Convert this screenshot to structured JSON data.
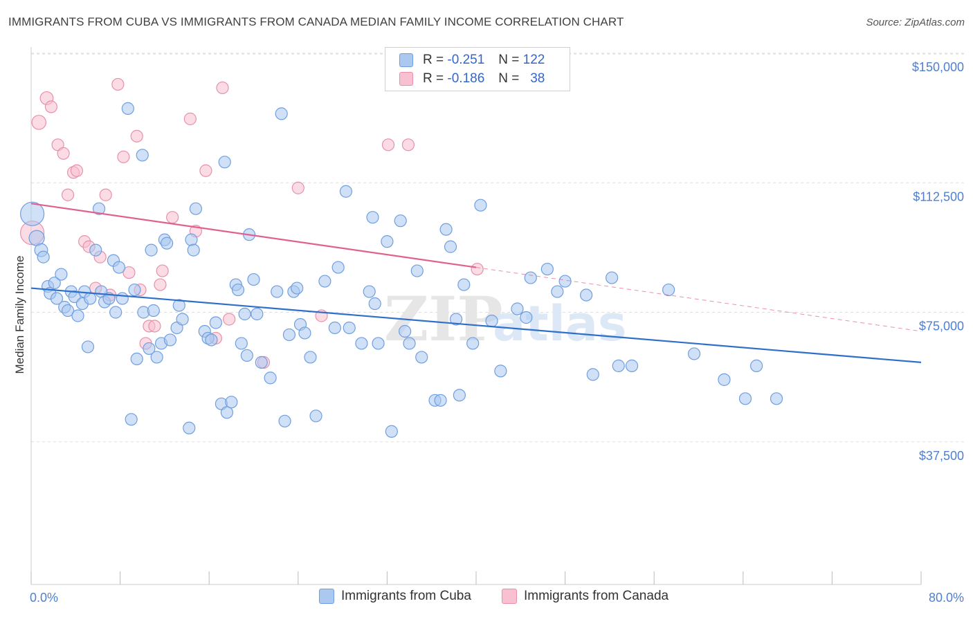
{
  "title": "IMMIGRANTS FROM CUBA VS IMMIGRANTS FROM CANADA MEDIAN FAMILY INCOME CORRELATION CHART",
  "source": "Source: ZipAtlas.com",
  "watermark": {
    "zip": "ZIP",
    "atlas": "atlas"
  },
  "legend": {
    "r_label": "R =",
    "n_label": "N =",
    "cuba": {
      "r": "-0.251",
      "n": "122"
    },
    "canada": {
      "r": "-0.186",
      "n": "38"
    }
  },
  "colors": {
    "cuba_fill": "#aac8f0",
    "cuba_stroke": "#6f9ee0",
    "cuba_line": "#2f6fcc",
    "canada_fill": "#f8c0d0",
    "canada_stroke": "#e890aa",
    "canada_line": "#e06090",
    "tick_text": "#4f7fcf"
  },
  "chart_data": {
    "type": "scatter",
    "title": "IMMIGRANTS FROM CUBA VS IMMIGRANTS FROM CANADA MEDIAN FAMILY INCOME CORRELATION CHART",
    "xlabel": "",
    "ylabel": "Median Family Income",
    "xlim": [
      0,
      80
    ],
    "ylim": [
      0,
      150000
    ],
    "y_ticks": [
      37500,
      75000,
      112500,
      150000
    ],
    "y_tick_labels": [
      "$37,500",
      "$75,000",
      "$112,500",
      "$150,000"
    ],
    "x_tick_labels": [
      "0.0%",
      "80.0%"
    ],
    "grid": "horizontal dashed",
    "legend_position": "top-center",
    "series": [
      {
        "name": "Immigrants from Cuba",
        "trend": {
          "x": [
            0,
            80
          ],
          "y": [
            82000,
            60500
          ]
        },
        "points": [
          [
            0.1,
            103500,
            2.0
          ],
          [
            0.5,
            96500,
            1.3
          ],
          [
            0.9,
            93000,
            1.1
          ],
          [
            1.1,
            91000,
            1.0
          ],
          [
            1.5,
            82500,
            1.0
          ],
          [
            1.7,
            80500,
            1.0
          ],
          [
            2.1,
            83500,
            1.0
          ],
          [
            2.3,
            79000,
            1.0
          ],
          [
            2.7,
            86000,
            1.0
          ],
          [
            3.0,
            76500,
            1.0
          ],
          [
            3.3,
            75500,
            1.0
          ],
          [
            3.6,
            81000,
            1.0
          ],
          [
            3.9,
            79500,
            1.0
          ],
          [
            4.2,
            74000,
            1.0
          ],
          [
            4.6,
            77500,
            1.0
          ],
          [
            4.8,
            81000,
            1.0
          ],
          [
            5.1,
            65000,
            1.0
          ],
          [
            5.3,
            79000,
            1.0
          ],
          [
            5.8,
            93000,
            1.0
          ],
          [
            6.1,
            105000,
            1.0
          ],
          [
            6.3,
            81000,
            1.0
          ],
          [
            6.6,
            78000,
            1.0
          ],
          [
            7.0,
            79000,
            1.0
          ],
          [
            7.4,
            90000,
            1.0
          ],
          [
            7.6,
            75000,
            1.0
          ],
          [
            7.9,
            88000,
            1.0
          ],
          [
            8.2,
            79000,
            1.0
          ],
          [
            8.7,
            134000,
            1.0
          ],
          [
            9.0,
            44000,
            1.0
          ],
          [
            9.3,
            81500,
            1.0
          ],
          [
            9.5,
            61500,
            1.0
          ],
          [
            10.0,
            120500,
            1.0
          ],
          [
            10.1,
            75000,
            1.0
          ],
          [
            10.6,
            64500,
            1.0
          ],
          [
            10.8,
            93000,
            1.0
          ],
          [
            11.0,
            75500,
            1.0
          ],
          [
            11.3,
            62000,
            1.0
          ],
          [
            11.7,
            66000,
            1.0
          ],
          [
            12.0,
            96000,
            1.0
          ],
          [
            12.2,
            95000,
            1.0
          ],
          [
            12.5,
            67000,
            1.0
          ],
          [
            13.1,
            70500,
            1.0
          ],
          [
            13.3,
            77000,
            1.0
          ],
          [
            13.6,
            73000,
            1.0
          ],
          [
            14.2,
            41500,
            1.0
          ],
          [
            14.4,
            96000,
            1.0
          ],
          [
            14.6,
            93000,
            1.0
          ],
          [
            14.8,
            105000,
            1.0
          ],
          [
            15.6,
            69500,
            1.0
          ],
          [
            15.9,
            67500,
            1.0
          ],
          [
            16.2,
            67000,
            1.0
          ],
          [
            16.6,
            72000,
            1.0
          ],
          [
            17.1,
            48500,
            1.0
          ],
          [
            17.4,
            118500,
            1.0
          ],
          [
            17.6,
            46000,
            1.0
          ],
          [
            18.0,
            49000,
            1.0
          ],
          [
            18.4,
            83000,
            1.0
          ],
          [
            18.6,
            81500,
            1.0
          ],
          [
            18.9,
            66000,
            1.0
          ],
          [
            19.2,
            74500,
            1.0
          ],
          [
            19.4,
            62500,
            1.0
          ],
          [
            19.6,
            97500,
            1.0
          ],
          [
            20.0,
            84500,
            1.0
          ],
          [
            20.3,
            74500,
            1.0
          ],
          [
            20.7,
            60500,
            1.0
          ],
          [
            21.5,
            56000,
            1.0
          ],
          [
            22.1,
            81000,
            1.0
          ],
          [
            22.5,
            132500,
            1.0
          ],
          [
            22.8,
            43500,
            1.0
          ],
          [
            23.2,
            68500,
            1.0
          ],
          [
            23.6,
            81000,
            1.0
          ],
          [
            23.9,
            82000,
            1.0
          ],
          [
            24.2,
            71500,
            1.0
          ],
          [
            24.6,
            69000,
            1.0
          ],
          [
            25.1,
            62000,
            1.0
          ],
          [
            25.6,
            45000,
            1.0
          ],
          [
            26.4,
            84000,
            1.0
          ],
          [
            27.3,
            70500,
            1.0
          ],
          [
            27.6,
            88000,
            1.0
          ],
          [
            28.3,
            110000,
            1.0
          ],
          [
            28.6,
            70500,
            1.0
          ],
          [
            29.7,
            66000,
            1.0
          ],
          [
            30.4,
            81000,
            1.0
          ],
          [
            30.7,
            102500,
            1.0
          ],
          [
            30.9,
            77500,
            1.0
          ],
          [
            31.2,
            66000,
            1.0
          ],
          [
            32.0,
            95500,
            1.0
          ],
          [
            32.4,
            40500,
            1.0
          ],
          [
            33.2,
            101500,
            1.0
          ],
          [
            33.6,
            69500,
            1.0
          ],
          [
            34.0,
            66000,
            1.0
          ],
          [
            34.7,
            87000,
            1.0
          ],
          [
            35.1,
            62000,
            1.0
          ],
          [
            36.3,
            49500,
            1.0
          ],
          [
            36.8,
            49500,
            1.0
          ],
          [
            37.3,
            99000,
            1.0
          ],
          [
            37.7,
            94000,
            1.0
          ],
          [
            38.2,
            73000,
            1.0
          ],
          [
            38.5,
            51000,
            1.0
          ],
          [
            38.9,
            83000,
            1.0
          ],
          [
            39.7,
            66000,
            1.0
          ],
          [
            40.4,
            106000,
            1.0
          ],
          [
            41.4,
            72500,
            1.0
          ],
          [
            42.2,
            58000,
            1.0
          ],
          [
            43.7,
            76000,
            1.0
          ],
          [
            44.5,
            73500,
            1.0
          ],
          [
            44.9,
            85000,
            1.0
          ],
          [
            46.4,
            87500,
            1.0
          ],
          [
            47.3,
            81000,
            1.0
          ],
          [
            48.0,
            84000,
            1.0
          ],
          [
            49.9,
            80000,
            1.0
          ],
          [
            50.5,
            57000,
            1.0
          ],
          [
            52.2,
            85000,
            1.0
          ],
          [
            52.8,
            59500,
            1.0
          ],
          [
            54.0,
            59500,
            1.0
          ],
          [
            57.3,
            81500,
            1.0
          ],
          [
            59.6,
            63000,
            1.0
          ],
          [
            62.3,
            55500,
            1.0
          ],
          [
            64.2,
            50000,
            1.0
          ],
          [
            65.2,
            59500,
            1.0
          ],
          [
            67.0,
            50000,
            1.0
          ]
        ]
      },
      {
        "name": "Immigrants from Canada",
        "trend": {
          "x": [
            0,
            40
          ],
          "y": [
            106500,
            88000
          ]
        },
        "trend_dashed": {
          "x": [
            40,
            80
          ],
          "y": [
            88000,
            69500
          ]
        },
        "points": [
          [
            0.1,
            98000,
            2.0
          ],
          [
            0.7,
            130000,
            1.2
          ],
          [
            1.4,
            137000,
            1.1
          ],
          [
            1.8,
            134500,
            1.0
          ],
          [
            2.4,
            123500,
            1.0
          ],
          [
            2.9,
            121000,
            1.0
          ],
          [
            3.3,
            109000,
            1.0
          ],
          [
            3.8,
            115500,
            1.0
          ],
          [
            4.1,
            116000,
            1.0
          ],
          [
            4.8,
            95500,
            1.0
          ],
          [
            5.2,
            94000,
            1.0
          ],
          [
            5.8,
            82000,
            1.0
          ],
          [
            6.2,
            91000,
            1.0
          ],
          [
            6.7,
            109000,
            1.0
          ],
          [
            7.1,
            80000,
            1.0
          ],
          [
            7.8,
            141000,
            1.0
          ],
          [
            8.3,
            120000,
            1.0
          ],
          [
            8.8,
            86500,
            1.0
          ],
          [
            9.5,
            126000,
            1.0
          ],
          [
            9.8,
            81500,
            1.0
          ],
          [
            10.3,
            66000,
            1.0
          ],
          [
            10.6,
            71000,
            1.0
          ],
          [
            11.1,
            71000,
            1.0
          ],
          [
            11.6,
            83000,
            1.0
          ],
          [
            11.8,
            87000,
            1.0
          ],
          [
            12.7,
            102500,
            1.0
          ],
          [
            14.3,
            131000,
            1.0
          ],
          [
            14.8,
            98500,
            1.0
          ],
          [
            15.7,
            116000,
            1.0
          ],
          [
            16.6,
            67500,
            1.0
          ],
          [
            17.2,
            140000,
            1.0
          ],
          [
            17.8,
            73000,
            1.0
          ],
          [
            20.9,
            60500,
            1.0
          ],
          [
            24.0,
            111000,
            1.0
          ],
          [
            26.1,
            74000,
            1.0
          ],
          [
            32.1,
            123500,
            1.0
          ],
          [
            33.9,
            123500,
            1.0
          ],
          [
            40.1,
            87500,
            1.0
          ]
        ]
      }
    ]
  },
  "bottom_legend": {
    "cuba": "Immigrants from Cuba",
    "canada": "Immigrants from Canada"
  }
}
